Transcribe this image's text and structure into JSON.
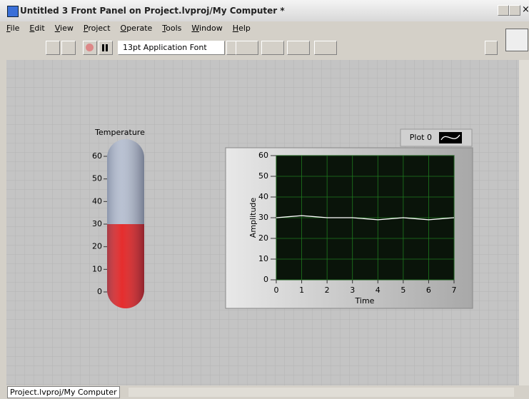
{
  "window": {
    "title": "Untitled 3 Front Panel on Project.lvproj/My Computer *"
  },
  "menu": [
    "File",
    "Edit",
    "View",
    "Project",
    "Operate",
    "Tools",
    "Window",
    "Help"
  ],
  "toolbar": {
    "font": "13pt Application Font"
  },
  "status": {
    "path": "Project.lvproj/My Computer"
  },
  "chart_data": [
    {
      "type": "thermometer",
      "title": "Temperature",
      "value": 30,
      "ylim": [
        0,
        60
      ],
      "yticks": [
        0,
        10,
        20,
        30,
        40,
        50,
        60
      ],
      "color": "#e00000",
      "empty_color": "#aab4c8"
    },
    {
      "type": "line",
      "x_label": "Time",
      "y_label": "Amplitude",
      "x": [
        0,
        0.5,
        1,
        1.5,
        2,
        2.5,
        3,
        3.5,
        4,
        4.5,
        5,
        5.5,
        6,
        6.5,
        7
      ],
      "series": [
        {
          "name": "Plot 0",
          "color": "#ffffff",
          "values": [
            30,
            30.5,
            31,
            30.5,
            30,
            30,
            30,
            29.5,
            29,
            29.5,
            30,
            29.5,
            29,
            29.5,
            30
          ]
        }
      ],
      "xlim": [
        0,
        7
      ],
      "ylim": [
        0,
        60
      ],
      "xticks": [
        0,
        1,
        2,
        3,
        4,
        5,
        6,
        7
      ],
      "yticks": [
        0,
        10,
        20,
        30,
        40,
        50,
        60
      ],
      "grid": true
    }
  ]
}
